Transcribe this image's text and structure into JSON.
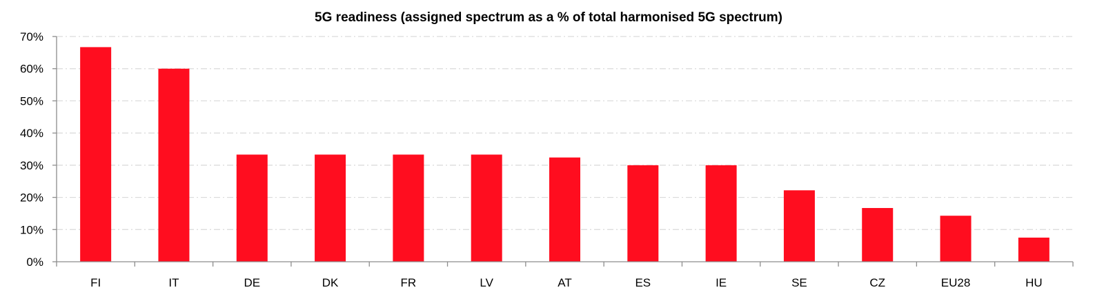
{
  "chart_data": {
    "type": "bar",
    "title": "5G readiness (assigned spectrum as a % of total harmonised 5G spectrum)",
    "xlabel": "",
    "ylabel": "",
    "categories": [
      "FI",
      "IT",
      "DE",
      "DK",
      "FR",
      "LV",
      "AT",
      "ES",
      "IE",
      "SE",
      "CZ",
      "EU28",
      "HU"
    ],
    "values": [
      66.7,
      60.0,
      33.3,
      33.3,
      33.3,
      33.3,
      32.4,
      30.0,
      30.0,
      22.2,
      16.7,
      14.3,
      7.5
    ],
    "ylim": [
      0,
      70
    ],
    "yticks": [
      0,
      10,
      20,
      30,
      40,
      50,
      60,
      70
    ],
    "ytick_labels": [
      "0%",
      "10%",
      "20%",
      "30%",
      "40%",
      "50%",
      "60%",
      "70%"
    ],
    "grid": true,
    "legend": "none",
    "bar_color": "#ff0d1f"
  }
}
